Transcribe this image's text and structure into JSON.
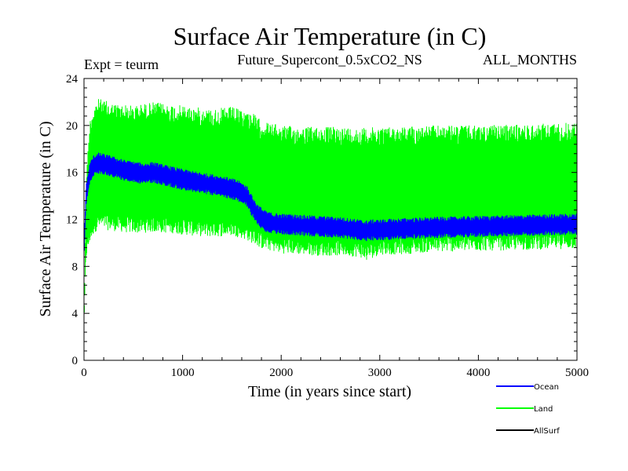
{
  "chart_data": {
    "type": "line",
    "title": "Surface Air Temperature (in C)",
    "subtitle_left": "Expt = teurm",
    "subtitle_center": "Future_Supercont_0.5xCO2_NS",
    "subtitle_right": "ALL_MONTHS",
    "xlabel": "Time (in years since start)",
    "ylabel": "Surface Air Temperature (in C)",
    "xlim": [
      0,
      5000
    ],
    "ylim": [
      0,
      24
    ],
    "x_ticks": [
      0,
      1000,
      2000,
      3000,
      4000,
      5000
    ],
    "x_tick_labels": [
      "0",
      "1000",
      "2000",
      "3000",
      "4000",
      "5000"
    ],
    "y_ticks": [
      0,
      4,
      8,
      12,
      16,
      20,
      24
    ],
    "y_tick_labels": [
      "0",
      "4",
      "8",
      "12",
      "16",
      "20",
      "24"
    ],
    "grid": false,
    "legend_position": "bottom-right, below plot",
    "series": [
      {
        "name": "Land",
        "color": "#00ff00",
        "x": [
          0,
          20,
          60,
          100,
          150,
          300,
          500,
          700,
          900,
          1100,
          1300,
          1500,
          1600,
          1700,
          1800,
          1900,
          2000,
          2200,
          2400,
          2600,
          2800,
          2850,
          3000,
          3200,
          3500,
          4000,
          4500,
          5000
        ],
        "envelope_high": [
          2.5,
          15.5,
          20.5,
          21.8,
          22.3,
          21.9,
          21.7,
          22.0,
          21.8,
          21.6,
          21.4,
          21.6,
          21.3,
          21.2,
          20.4,
          20.2,
          20.0,
          19.9,
          19.9,
          19.9,
          19.8,
          19.8,
          19.9,
          19.9,
          20.0,
          20.0,
          20.1,
          20.3
        ],
        "envelope_low": [
          2.0,
          8.5,
          10.0,
          10.8,
          11.2,
          11.0,
          10.8,
          10.9,
          10.8,
          10.6,
          10.5,
          10.6,
          10.4,
          10.0,
          9.5,
          9.3,
          9.1,
          9.0,
          8.9,
          8.9,
          8.8,
          8.4,
          9.0,
          9.0,
          9.2,
          9.3,
          9.4,
          9.5
        ]
      },
      {
        "name": "Ocean",
        "color": "#0000ff",
        "x": [
          0,
          20,
          60,
          100,
          150,
          250,
          400,
          600,
          700,
          800,
          1000,
          1200,
          1400,
          1550,
          1650,
          1700,
          1750,
          1800,
          1850,
          1900,
          2000,
          2200,
          2400,
          2600,
          2800,
          2850,
          2900,
          3000,
          3200,
          3500,
          4000,
          4500,
          5000
        ],
        "mean": [
          9.0,
          14.0,
          16.0,
          16.6,
          16.8,
          16.6,
          16.2,
          15.9,
          16.0,
          15.8,
          15.4,
          15.1,
          14.8,
          14.5,
          14.0,
          13.2,
          12.5,
          12.1,
          11.8,
          11.7,
          11.6,
          11.5,
          11.4,
          11.3,
          11.1,
          11.0,
          11.1,
          11.1,
          11.2,
          11.3,
          11.4,
          11.5,
          11.6
        ],
        "band": 0.6
      },
      {
        "name": "AllSurf",
        "color": "#000000",
        "x": [],
        "values": []
      }
    ]
  },
  "legend": [
    {
      "name": "Ocean",
      "color": "#0000ff"
    },
    {
      "name": "Land",
      "color": "#00ff00"
    },
    {
      "name": "AllSurf",
      "color": "#000000"
    }
  ]
}
